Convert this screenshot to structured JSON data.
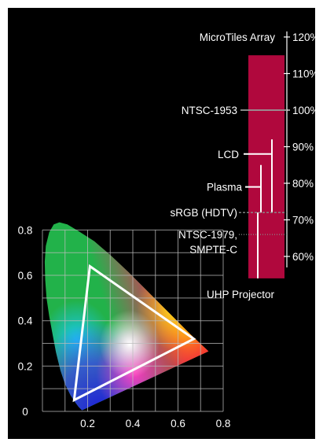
{
  "chart_data": [
    {
      "type": "scatter",
      "subtype": "cie-1931-chromaticity-diagram",
      "xlabel": "",
      "ylabel": "",
      "xlim": [
        0,
        0.8
      ],
      "ylim": [
        0,
        0.85
      ],
      "x_ticks": [
        "0.2",
        "0.4",
        "0.6",
        "0.8"
      ],
      "y_ticks": [
        "0",
        "0.2",
        "0.4",
        "0.6",
        "0.8"
      ],
      "grid": true,
      "series": [
        {
          "name": "",
          "shape": "triangle",
          "color": "#ffffff",
          "points": [
            {
              "x": 0.21,
              "y": 0.64
            },
            {
              "x": 0.67,
              "y": 0.32
            },
            {
              "x": 0.14,
              "y": 0.05
            }
          ]
        }
      ]
    },
    {
      "type": "bar",
      "subtype": "color-gamut-scale",
      "bar_color": "#b0083d",
      "bar_range": [
        54,
        115
      ],
      "ylim": [
        50,
        122
      ],
      "ticks": [
        "60%",
        "70%",
        "80%",
        "90%",
        "100%",
        "110%",
        "120%"
      ],
      "tick_values": [
        60,
        70,
        80,
        90,
        100,
        110,
        120
      ],
      "annotations": [
        {
          "label": "MicroTiles Array",
          "value": 120,
          "style": "tick"
        },
        {
          "label": "NTSC-1953",
          "value": 100,
          "style": "line"
        },
        {
          "label": "LCD",
          "range": [
            72,
            92
          ],
          "style": "bracket"
        },
        {
          "label": "Plasma",
          "range": [
            72,
            85
          ],
          "style": "bracket"
        },
        {
          "label": "sRGB (HDTV)",
          "value": 72,
          "style": "dashed"
        },
        {
          "label": "NTSC-1979,",
          "label2": "SMPTE-C",
          "value": 66,
          "style": "dotted"
        },
        {
          "label": "UHP Projector",
          "range": [
            54,
            72
          ],
          "style": "bracket"
        }
      ]
    }
  ]
}
